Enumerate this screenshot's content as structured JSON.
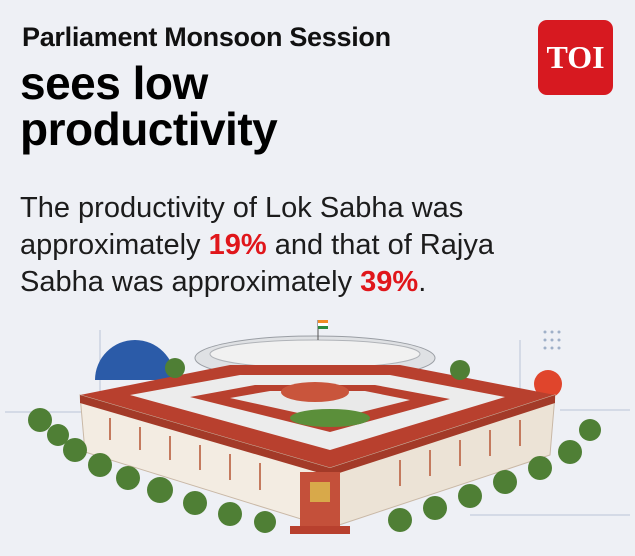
{
  "header": {
    "kicker": "Parliament Monsoon Session",
    "title_line_1": "sees low",
    "title_line_2": "productivity",
    "logo": "TOI"
  },
  "body": {
    "part_1": "The productivity of Lok Sabha was approximately ",
    "lok_sabha": "19%",
    "part_2": " and that of Rajya Sabha was approximately ",
    "rajya_sabha": "39%",
    "part_3": "."
  }
}
